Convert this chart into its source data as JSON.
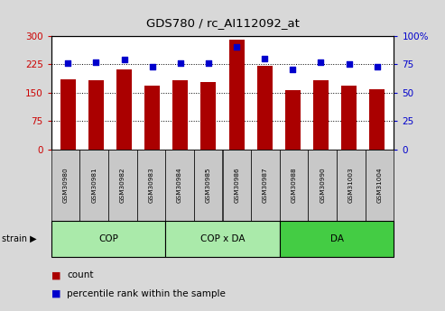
{
  "title": "GDS780 / rc_AI112092_at",
  "samples": [
    "GSM30980",
    "GSM30981",
    "GSM30982",
    "GSM30983",
    "GSM30984",
    "GSM30985",
    "GSM30986",
    "GSM30987",
    "GSM30988",
    "GSM30990",
    "GSM31003",
    "GSM31004"
  ],
  "count_values": [
    185,
    182,
    212,
    168,
    182,
    177,
    290,
    220,
    156,
    182,
    168,
    158
  ],
  "percentile_values": [
    76,
    77,
    79,
    73,
    76,
    76,
    90,
    80,
    70,
    77,
    75,
    73
  ],
  "groups": [
    {
      "label": "COP",
      "start": 0,
      "end": 4
    },
    {
      "label": "COP x DA",
      "start": 4,
      "end": 8
    },
    {
      "label": "DA",
      "start": 8,
      "end": 12
    }
  ],
  "group_colors": [
    "#aaeaaa",
    "#aaeaaa",
    "#44cc44"
  ],
  "bar_color": "#AA0000",
  "dot_color": "#0000CC",
  "left_axis_color": "#CC0000",
  "right_axis_color": "#0000CC",
  "left_yticks": [
    0,
    75,
    150,
    225,
    300
  ],
  "right_yticks": [
    0,
    25,
    50,
    75,
    100
  ],
  "ylim_left": [
    0,
    300
  ],
  "ylim_right": [
    0,
    100
  ],
  "bg_color": "#D8D8D8",
  "plot_bg": "white",
  "sample_box_color": "#C8C8C8",
  "legend_count_label": "count",
  "legend_pct_label": "percentile rank within the sample"
}
